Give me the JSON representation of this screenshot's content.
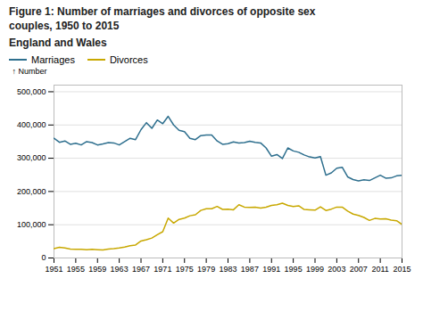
{
  "chart_data": {
    "type": "line",
    "title": "Figure 1: Number of marriages and divorces of opposite sex\ncouples, 1950 to 2015",
    "subtitle": "England and Wales",
    "ylabel": "Number",
    "x": [
      1951,
      1952,
      1953,
      1954,
      1955,
      1956,
      1957,
      1958,
      1959,
      1960,
      1961,
      1962,
      1963,
      1964,
      1965,
      1966,
      1967,
      1968,
      1969,
      1970,
      1971,
      1972,
      1973,
      1974,
      1975,
      1976,
      1977,
      1978,
      1979,
      1980,
      1981,
      1982,
      1983,
      1984,
      1985,
      1986,
      1987,
      1988,
      1989,
      1990,
      1991,
      1992,
      1993,
      1994,
      1995,
      1996,
      1997,
      1998,
      1999,
      2000,
      2001,
      2002,
      2003,
      2004,
      2005,
      2006,
      2007,
      2008,
      2009,
      2010,
      2011,
      2012,
      2013,
      2014,
      2015
    ],
    "series": [
      {
        "name": "Marriages",
        "color": "#2e6f8e",
        "values": [
          360000,
          348000,
          352000,
          342000,
          345000,
          340000,
          350000,
          347000,
          340000,
          343000,
          347000,
          346000,
          340000,
          350000,
          360000,
          356000,
          386000,
          407000,
          390000,
          415000,
          404000,
          426000,
          400000,
          384000,
          380000,
          360000,
          356000,
          368000,
          370000,
          370000,
          352000,
          342000,
          344000,
          349000,
          346000,
          347000,
          351000,
          348000,
          346000,
          331000,
          306000,
          311000,
          299000,
          331000,
          322000,
          318000,
          310000,
          304000,
          301000,
          305000,
          249000,
          256000,
          270000,
          273000,
          244000,
          236000,
          232000,
          235000,
          233000,
          241000,
          249000,
          240000,
          241000,
          247000,
          249000
        ]
      },
      {
        "name": "Divorces",
        "color": "#c8a800",
        "values": [
          28000,
          32000,
          30000,
          27000,
          26000,
          26000,
          25000,
          26000,
          25000,
          24000,
          27000,
          28000,
          30000,
          33000,
          37000,
          39000,
          51000,
          55000,
          60000,
          70000,
          79000,
          120000,
          105000,
          116000,
          120000,
          127000,
          130000,
          143000,
          148000,
          148000,
          155000,
          146000,
          147000,
          145000,
          160000,
          153000,
          152000,
          153000,
          150000,
          153000,
          158000,
          160000,
          165000,
          158000,
          155000,
          157000,
          146000,
          145000,
          144000,
          154000,
          143000,
          147000,
          153000,
          153000,
          141000,
          132000,
          128000,
          122000,
          113000,
          119000,
          117000,
          118000,
          114000,
          112000,
          101000
        ]
      }
    ],
    "xlim": [
      1951,
      2015
    ],
    "xticks": [
      1951,
      1955,
      1959,
      1963,
      1967,
      1971,
      1975,
      1979,
      1983,
      1987,
      1991,
      1995,
      1999,
      2003,
      2007,
      2011,
      2015
    ],
    "ylim": [
      0,
      520000
    ],
    "yticks": [
      0,
      {
        "value": 100000,
        "label": "100,000"
      },
      {
        "value": 200000,
        "label": "200,000"
      },
      {
        "value": 300000,
        "label": "300,000"
      },
      {
        "value": 400000,
        "label": "400,000"
      },
      {
        "value": 500000,
        "label": "500,000"
      }
    ],
    "grid": true,
    "legend": "upper left"
  }
}
